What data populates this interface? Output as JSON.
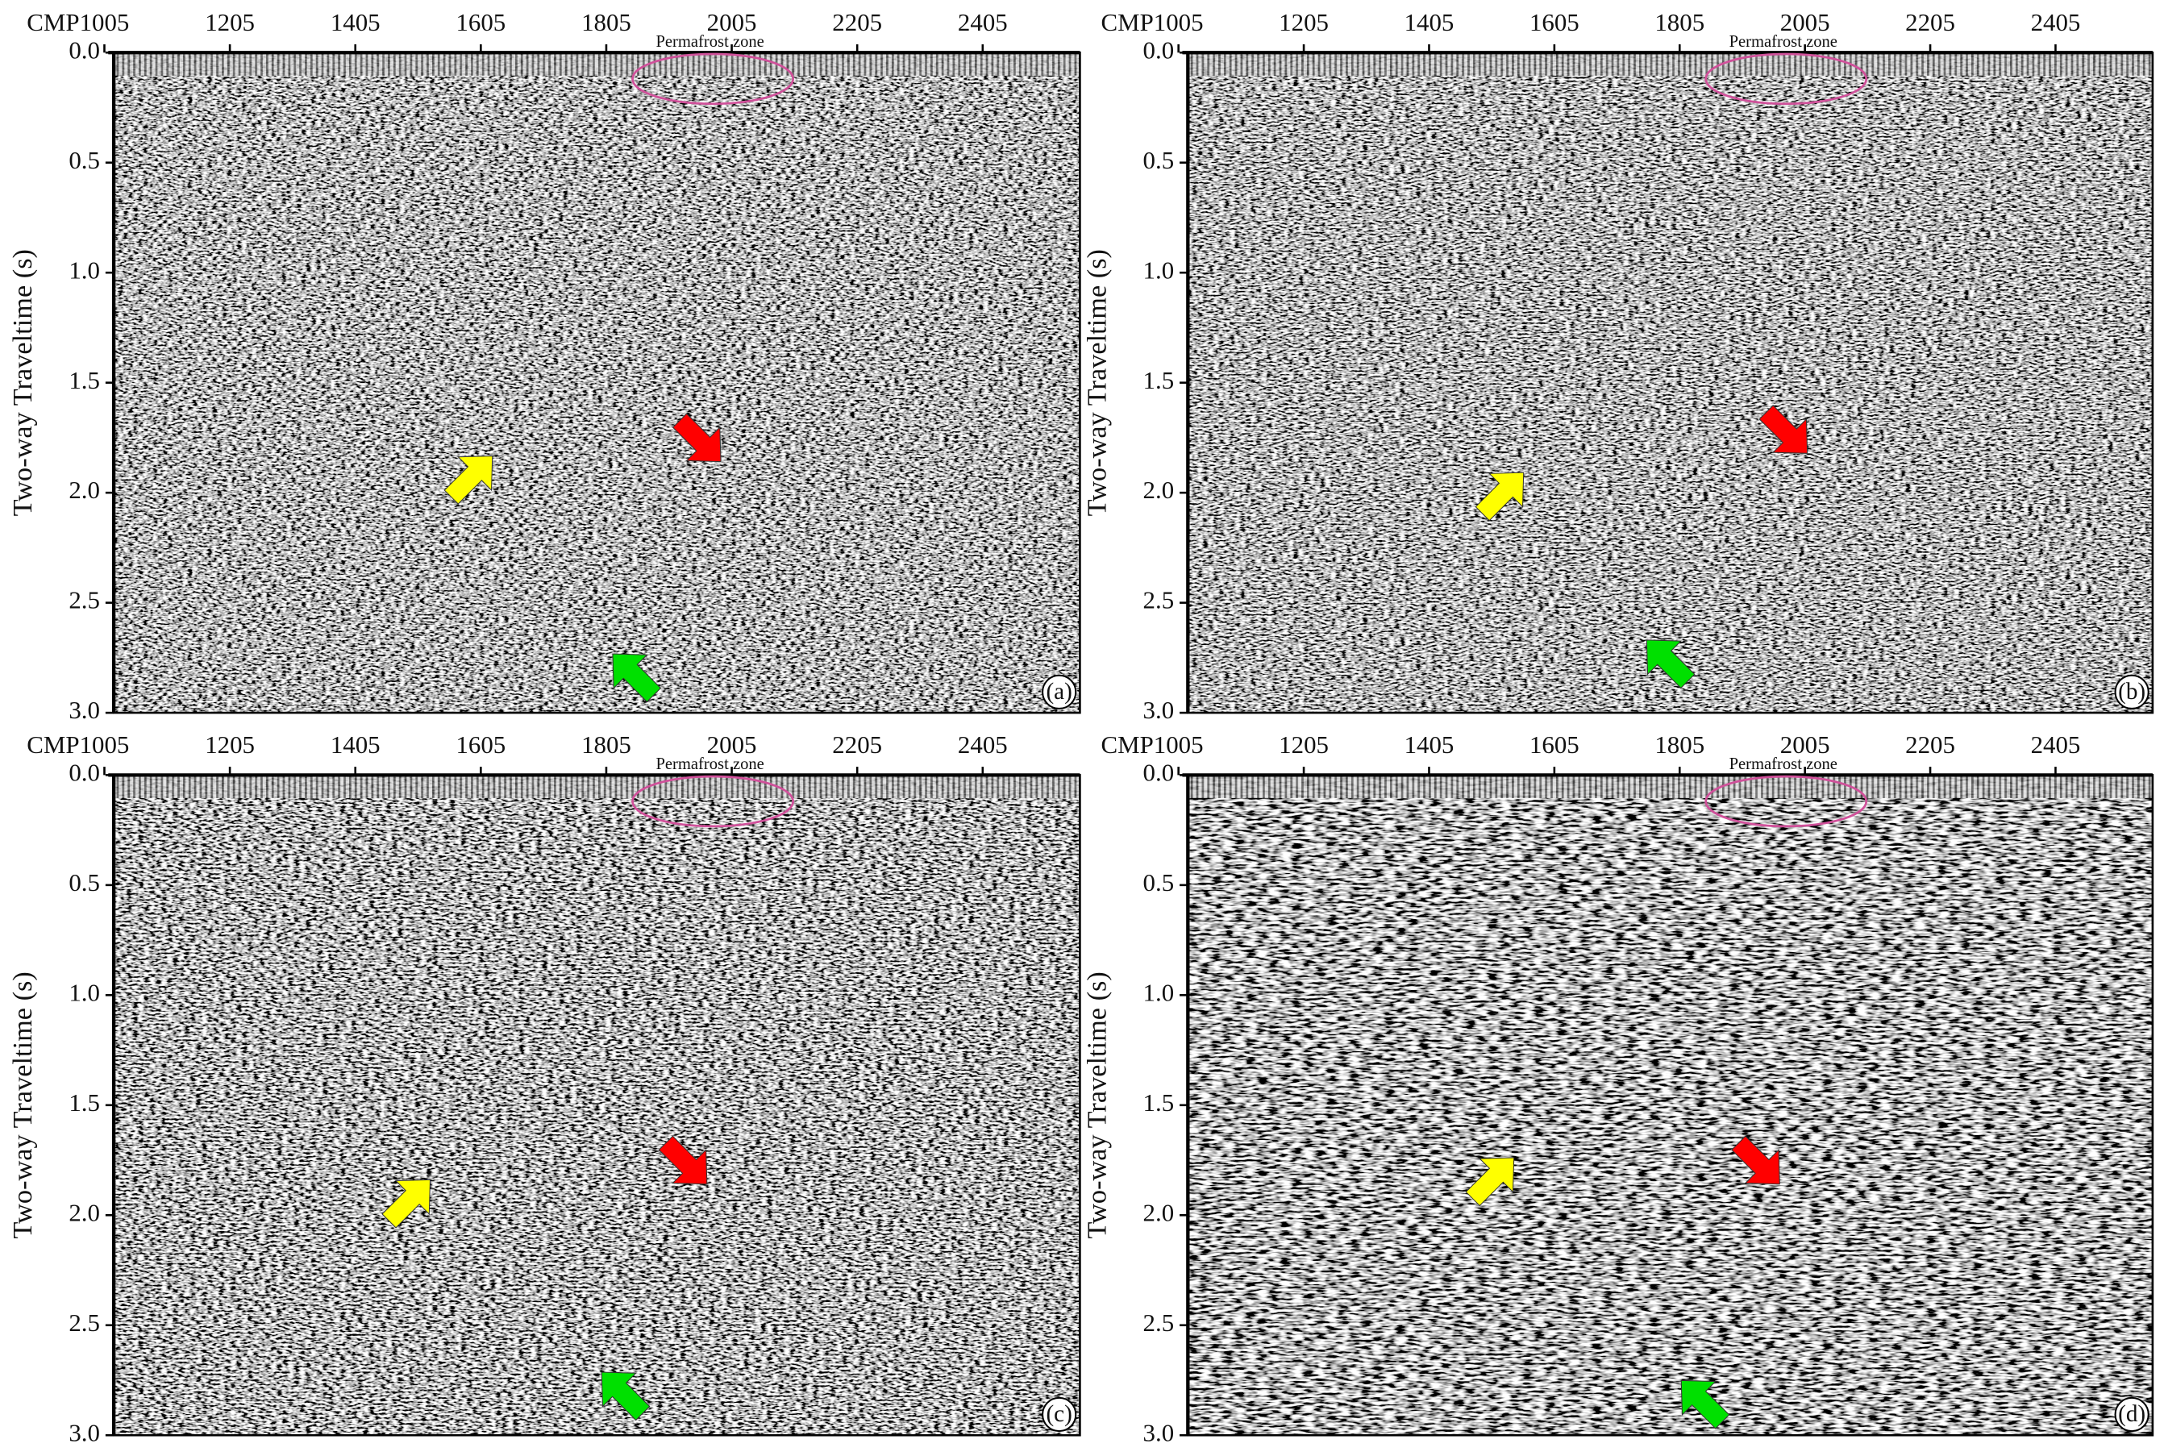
{
  "chart_data": [
    {
      "type": "seismic-section",
      "x_label": "CMP",
      "y_label": "Two-way Traveltime (s)",
      "annotation": "Permafrost zone",
      "panel_label": "(a)",
      "xlim": [
        1020,
        2560
      ],
      "xticks": [
        1005,
        1205,
        1405,
        1605,
        1805,
        2005,
        2205,
        2405
      ],
      "ylim": [
        0,
        3
      ],
      "yticks": [
        {
          "value": 0,
          "label": "0.0"
        },
        0.5,
        {
          "value": 1,
          "label": "1.0"
        },
        1.5,
        {
          "value": 2,
          "label": "2.0"
        },
        2.5,
        {
          "value": 3,
          "label": "3.0"
        }
      ]
    },
    {
      "type": "seismic-section",
      "x_label": "CMP",
      "y_label": "Two-way Traveltime (s)",
      "annotation": "Permafrost zone",
      "panel_label": "(b)",
      "xlim": [
        1020,
        2560
      ],
      "xticks": [
        1005,
        1205,
        1405,
        1605,
        1805,
        2005,
        2205,
        2405
      ],
      "ylim": [
        0,
        3
      ],
      "yticks": [
        {
          "value": 0,
          "label": "0.0"
        },
        0.5,
        {
          "value": 1,
          "label": "1.0"
        },
        1.5,
        {
          "value": 2,
          "label": "2.0"
        },
        2.5,
        {
          "value": 3,
          "label": "3.0"
        }
      ]
    },
    {
      "type": "seismic-section",
      "x_label": "CMP",
      "y_label": "Two-way Traveltime (s)",
      "annotation": "Permafrost zone",
      "panel_label": "(c)",
      "xlim": [
        1020,
        2560
      ],
      "xticks": [
        1005,
        1205,
        1405,
        1605,
        1805,
        2005,
        2205,
        2405
      ],
      "ylim": [
        0,
        3
      ],
      "yticks": [
        {
          "value": 0,
          "label": "0.0"
        },
        0.5,
        {
          "value": 1,
          "label": "1.0"
        },
        1.5,
        {
          "value": 2,
          "label": "2.0"
        },
        2.5,
        {
          "value": 3,
          "label": "3.0"
        }
      ]
    },
    {
      "type": "seismic-section",
      "x_label": "CMP",
      "y_label": "Two-way Traveltime (s)",
      "annotation": "Permafrost zone",
      "panel_label": "(d)",
      "xlim": [
        1020,
        2560
      ],
      "xticks": [
        1005,
        1205,
        1405,
        1605,
        1805,
        2005,
        2205,
        2405
      ],
      "ylim": [
        0,
        3
      ],
      "yticks": [
        {
          "value": 0,
          "label": "0.0"
        },
        0.5,
        {
          "value": 1,
          "label": "1.0"
        },
        1.5,
        {
          "value": 2,
          "label": "2.0"
        },
        2.5,
        {
          "value": 3,
          "label": "3.0"
        }
      ]
    }
  ]
}
